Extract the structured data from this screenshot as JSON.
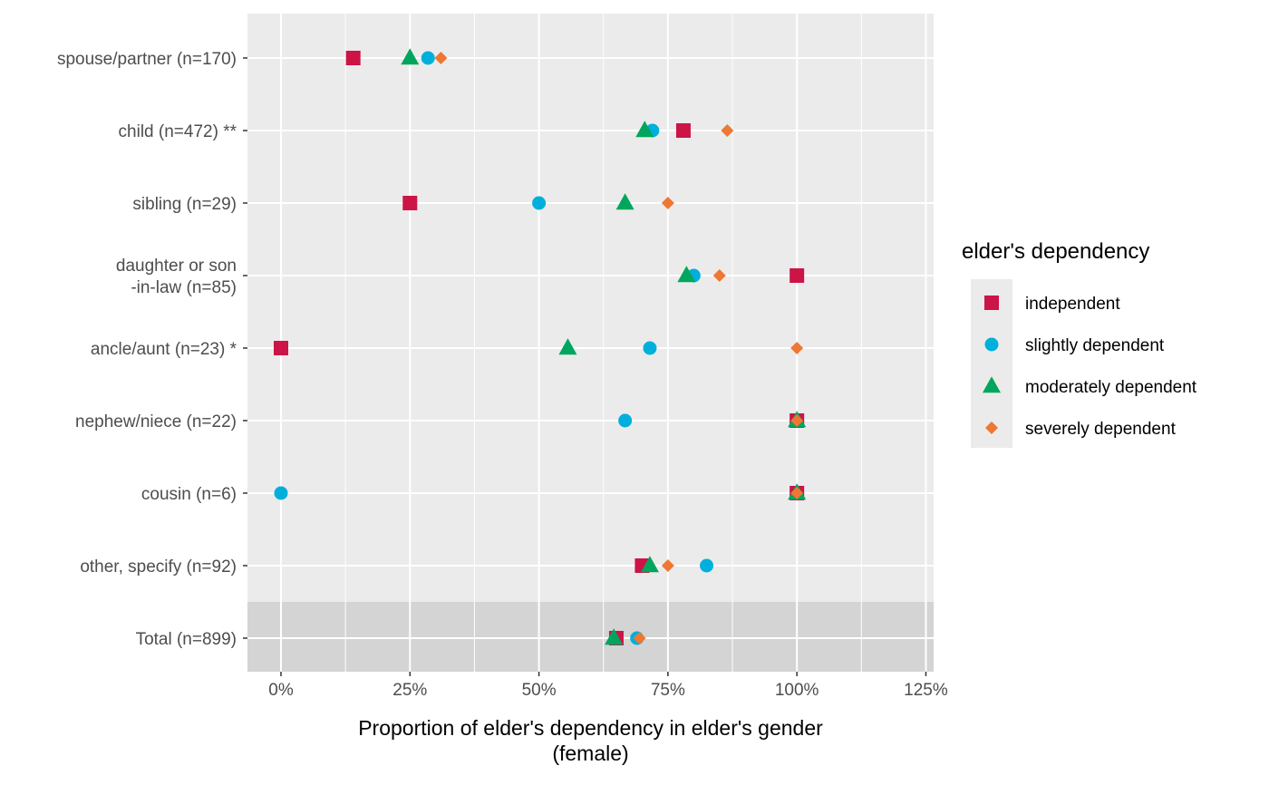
{
  "chart_data": {
    "type": "scatter",
    "title": "",
    "xlabel": [
      "Proportion of elder's dependency in elder's gender",
      "(female)"
    ],
    "ylabel": "",
    "xlim": [
      -0.065,
      1.265
    ],
    "x_ticks": [
      {
        "value": 0,
        "label": "0%"
      },
      {
        "value": 0.25,
        "label": "25%"
      },
      {
        "value": 0.5,
        "label": "50%"
      },
      {
        "value": 0.75,
        "label": "75%"
      },
      {
        "value": 1.0,
        "label": "100%"
      },
      {
        "value": 1.25,
        "label": "125%"
      }
    ],
    "categories": [
      [
        "spouse/partner (n=170)"
      ],
      [
        "child (n=472) **"
      ],
      [
        "sibling (n=29)"
      ],
      [
        "daughter or son",
        "-in-law (n=85)"
      ],
      [
        "ancle/aunt (n=23) *"
      ],
      [
        "nephew/niece (n=22)"
      ],
      [
        "cousin (n=6)"
      ],
      [
        "other, specify (n=92)"
      ],
      [
        "Total (n=899)"
      ]
    ],
    "highlight_category_index": 8,
    "legend": {
      "title": "elder's dependency",
      "position": "right"
    },
    "grid": true,
    "series": [
      {
        "name": "independent",
        "shape": "square",
        "color": "#CC1447",
        "values": [
          0.14,
          0.78,
          0.25,
          1.0,
          0.0,
          1.0,
          1.0,
          0.7,
          0.65
        ]
      },
      {
        "name": "slightly dependent",
        "shape": "circle",
        "color": "#00AFDB",
        "values": [
          0.285,
          0.72,
          0.5,
          0.8,
          0.715,
          0.667,
          0.0,
          0.825,
          0.69
        ]
      },
      {
        "name": "moderately dependent",
        "shape": "triangle",
        "color": "#00A65D",
        "values": [
          0.25,
          0.705,
          0.667,
          0.786,
          0.556,
          1.0,
          1.0,
          0.715,
          0.645
        ]
      },
      {
        "name": "severely dependent",
        "shape": "diamond",
        "color": "#EE7733",
        "values": [
          0.31,
          0.865,
          0.75,
          0.85,
          1.0,
          1.0,
          1.0,
          0.75,
          0.695
        ]
      }
    ]
  }
}
